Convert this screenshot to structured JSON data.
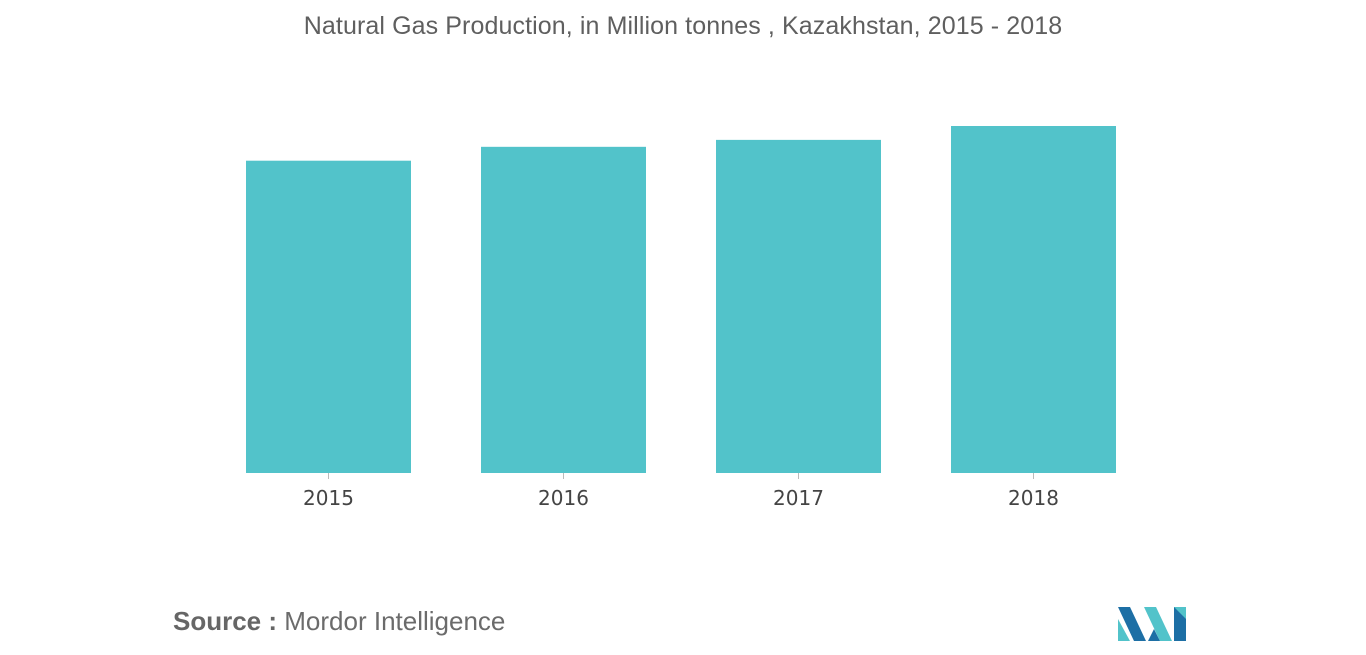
{
  "chart_data": {
    "type": "bar",
    "title": "Natural Gas Production, in Million tonnes , Kazakhstan, 2015 - 2018",
    "categories": [
      "2015",
      "2016",
      "2017",
      "2018"
    ],
    "values": [
      18.0,
      18.8,
      19.2,
      20.0
    ],
    "ylim": [
      0,
      20.0
    ],
    "xlabel": "",
    "ylabel": "",
    "grid": false,
    "legend": "none",
    "bar_color": "#52c3ca"
  },
  "footer": {
    "source_label": "Source :",
    "source_text": "Mordor Intelligence"
  },
  "logo": {
    "icon": "mordor-intelligence-logo",
    "colors": [
      "#1d6fa5",
      "#52c3ca"
    ]
  }
}
